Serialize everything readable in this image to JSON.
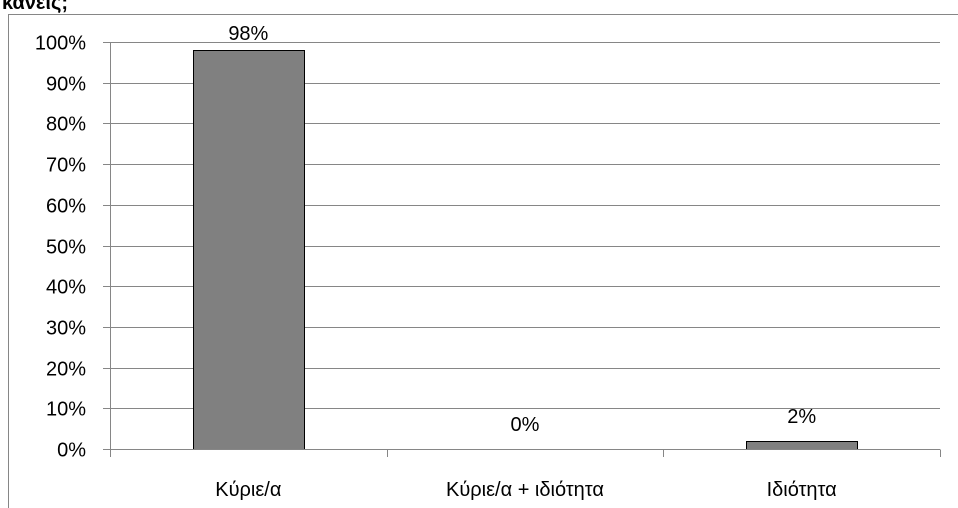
{
  "page": {
    "heading_fragment": "κανεις;"
  },
  "chart_data": {
    "type": "bar",
    "categories": [
      "Κύριε/α",
      "Κύριε/α + ιδιότητα",
      "Ιδιότητα"
    ],
    "values": [
      98,
      0,
      2
    ],
    "data_labels": [
      "98%",
      "0%",
      "2%"
    ],
    "ylim": [
      0,
      100
    ],
    "yticks": [
      0,
      10,
      20,
      30,
      40,
      50,
      60,
      70,
      80,
      90,
      100
    ],
    "ytick_labels": [
      "0%",
      "10%",
      "20%",
      "30%",
      "40%",
      "50%",
      "60%",
      "70%",
      "80%",
      "90%",
      "100%"
    ],
    "grid": true,
    "legend": false,
    "colors": {
      "bar_fill": "#808080",
      "bar_stroke": "#000000",
      "grid": "#868686"
    }
  }
}
